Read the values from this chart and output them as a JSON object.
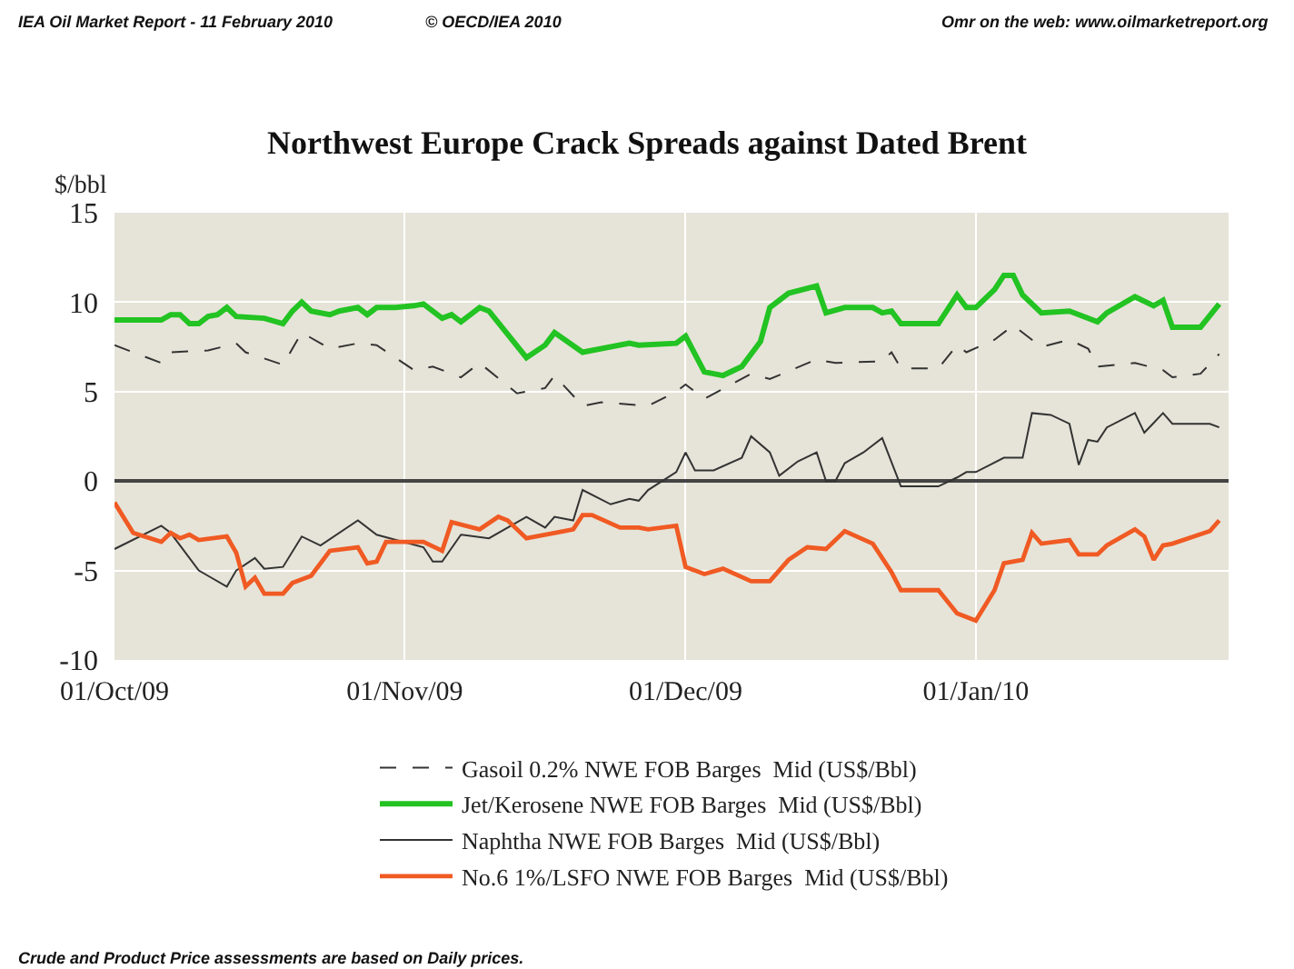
{
  "chart_data": {
    "type": "line",
    "title": "Northwest Europe Crack Spreads against Dated Brent",
    "ylabel": "$/bbl",
    "annotations": [
      "IEA Oil Market Report - 11 February 2010",
      "© OECD/IEA 2010",
      "Omr on the web: www.oilmarketreport.org",
      "Crude and Product Price assessments are based on Daily prices."
    ],
    "xlim": [
      "2009-10-01",
      "2010-01-28"
    ],
    "xticks": [
      {
        "value": "2009-10-01",
        "label": "01/Oct/09"
      },
      {
        "value": "2009-11-01",
        "label": "01/Nov/09"
      },
      {
        "value": "2009-12-01",
        "label": "01/Dec/09"
      },
      {
        "value": "2010-01-01",
        "label": "01/Jan/10"
      }
    ],
    "ylim": [
      -10,
      15
    ],
    "yticks": [
      -10,
      -5,
      0,
      5,
      10,
      15
    ],
    "grid": true,
    "legend": "bottom",
    "marker": "none",
    "series": [
      {
        "name": "Gasoil 0.2% NWE FOB Barges  Mid (US$/Bbl)",
        "color": "#333333",
        "line_style": "dashed",
        "x": [
          "2009-10-01",
          "2009-10-06",
          "2009-10-07",
          "2009-10-11",
          "2009-10-14",
          "2009-10-15",
          "2009-10-19",
          "2009-10-21",
          "2009-10-24",
          "2009-10-27",
          "2009-10-29",
          "2009-11-02",
          "2009-11-04",
          "2009-11-07",
          "2009-11-09",
          "2009-11-13",
          "2009-11-16",
          "2009-11-17",
          "2009-11-20",
          "2009-11-22",
          "2009-11-27",
          "2009-11-30",
          "2009-12-01",
          "2009-12-03",
          "2009-12-08",
          "2009-12-10",
          "2009-12-15",
          "2009-12-17",
          "2009-12-22",
          "2009-12-23",
          "2009-12-24",
          "2009-12-28",
          "2009-12-30",
          "2009-12-31",
          "2010-01-03",
          "2010-01-05",
          "2010-01-08",
          "2010-01-11",
          "2010-01-13",
          "2010-01-14",
          "2010-01-18",
          "2010-01-21",
          "2010-01-22",
          "2010-01-25",
          "2010-01-27"
        ],
        "values": [
          7.6,
          6.6,
          7.2,
          7.3,
          7.7,
          7.2,
          6.5,
          8.3,
          7.4,
          7.7,
          7.6,
          6.2,
          6.4,
          5.8,
          6.6,
          4.9,
          5.2,
          5.9,
          4.2,
          4.4,
          4.2,
          5.0,
          5.4,
          4.6,
          6.0,
          5.7,
          6.8,
          6.6,
          6.7,
          7.2,
          6.3,
          6.3,
          7.6,
          7.2,
          7.9,
          8.7,
          7.5,
          7.9,
          7.4,
          6.4,
          6.6,
          6.2,
          5.8,
          6.0,
          7.1
        ]
      },
      {
        "name": "Jet/Kerosene NWE FOB Barges  Mid (US$/Bbl)",
        "color": "#22c322",
        "line_style": "solid",
        "x": [
          "2009-10-01",
          "2009-10-06",
          "2009-10-07",
          "2009-10-08",
          "2009-10-09",
          "2009-10-10",
          "2009-10-11",
          "2009-10-12",
          "2009-10-13",
          "2009-10-14",
          "2009-10-17",
          "2009-10-19",
          "2009-10-20",
          "2009-10-21",
          "2009-10-22",
          "2009-10-24",
          "2009-10-25",
          "2009-10-27",
          "2009-10-28",
          "2009-10-29",
          "2009-10-31",
          "2009-11-02",
          "2009-11-03",
          "2009-11-05",
          "2009-11-06",
          "2009-11-07",
          "2009-11-09",
          "2009-11-10",
          "2009-11-14",
          "2009-11-16",
          "2009-11-17",
          "2009-11-20",
          "2009-11-25",
          "2009-11-26",
          "2009-11-30",
          "2009-12-01",
          "2009-12-03",
          "2009-12-05",
          "2009-12-07",
          "2009-12-09",
          "2009-12-10",
          "2009-12-12",
          "2009-12-15",
          "2009-12-16",
          "2009-12-18",
          "2009-12-21",
          "2009-12-22",
          "2009-12-23",
          "2009-12-24",
          "2009-12-28",
          "2009-12-30",
          "2009-12-31",
          "2010-01-01",
          "2010-01-03",
          "2010-01-04",
          "2010-01-05",
          "2010-01-06",
          "2010-01-08",
          "2010-01-11",
          "2010-01-14",
          "2010-01-15",
          "2010-01-18",
          "2010-01-20",
          "2010-01-21",
          "2010-01-22",
          "2010-01-25",
          "2010-01-27"
        ],
        "values": [
          9.0,
          9.0,
          9.3,
          9.3,
          8.8,
          8.8,
          9.2,
          9.3,
          9.7,
          9.2,
          9.1,
          8.8,
          9.5,
          10.0,
          9.5,
          9.3,
          9.5,
          9.7,
          9.3,
          9.7,
          9.7,
          9.8,
          9.9,
          9.1,
          9.3,
          8.9,
          9.7,
          9.5,
          6.9,
          7.6,
          8.3,
          7.2,
          7.7,
          7.6,
          7.7,
          8.1,
          6.1,
          5.9,
          6.4,
          7.8,
          9.7,
          10.5,
          10.9,
          9.4,
          9.7,
          9.7,
          9.4,
          9.5,
          8.8,
          8.8,
          10.4,
          9.7,
          9.7,
          10.7,
          11.5,
          11.5,
          10.4,
          9.4,
          9.5,
          8.9,
          9.4,
          10.3,
          9.8,
          10.1,
          8.6,
          8.6,
          9.9
        ]
      },
      {
        "name": "Naphtha NWE FOB Barges  Mid (US$/Bbl)",
        "color": "#333333",
        "line_style": "solid",
        "x": [
          "2009-10-01",
          "2009-10-06",
          "2009-10-07",
          "2009-10-10",
          "2009-10-11",
          "2009-10-13",
          "2009-10-14",
          "2009-10-16",
          "2009-10-17",
          "2009-10-19",
          "2009-10-21",
          "2009-10-23",
          "2009-10-27",
          "2009-10-29",
          "2009-11-03",
          "2009-11-04",
          "2009-11-05",
          "2009-11-07",
          "2009-11-10",
          "2009-11-14",
          "2009-11-16",
          "2009-11-17",
          "2009-11-19",
          "2009-11-20",
          "2009-11-23",
          "2009-11-25",
          "2009-11-26",
          "2009-11-27",
          "2009-11-30",
          "2009-12-01",
          "2009-12-02",
          "2009-12-04",
          "2009-12-07",
          "2009-12-08",
          "2009-12-10",
          "2009-12-11",
          "2009-12-13",
          "2009-12-15",
          "2009-12-16",
          "2009-12-17",
          "2009-12-18",
          "2009-12-20",
          "2009-12-22",
          "2009-12-24",
          "2009-12-28",
          "2009-12-30",
          "2009-12-31",
          "2010-01-01",
          "2010-01-04",
          "2010-01-06",
          "2010-01-07",
          "2010-01-09",
          "2010-01-11",
          "2010-01-12",
          "2010-01-13",
          "2010-01-14",
          "2010-01-15",
          "2010-01-18",
          "2010-01-19",
          "2010-01-21",
          "2010-01-22",
          "2010-01-26",
          "2010-01-27"
        ],
        "values": [
          -3.8,
          -2.5,
          -2.9,
          -5.0,
          -5.3,
          -5.9,
          -5.0,
          -4.3,
          -4.9,
          -4.8,
          -3.1,
          -3.6,
          -2.2,
          -3.0,
          -3.7,
          -4.5,
          -4.5,
          -3.0,
          -3.2,
          -2.0,
          -2.6,
          -2.0,
          -2.2,
          -0.5,
          -1.3,
          -1.0,
          -1.1,
          -0.5,
          0.5,
          1.6,
          0.6,
          0.6,
          1.3,
          2.5,
          1.6,
          0.3,
          1.1,
          1.6,
          0,
          0,
          1.0,
          1.6,
          2.4,
          -0.3,
          -0.3,
          0.2,
          0.5,
          0.5,
          1.3,
          1.3,
          3.8,
          3.7,
          3.2,
          0.9,
          2.3,
          2.2,
          3.0,
          3.8,
          2.7,
          3.8,
          3.2,
          3.2,
          3.0
        ]
      },
      {
        "name": "No.6 1%/LSFO NWE FOB Barges  Mid (US$/Bbl)",
        "color": "#f05a23",
        "line_style": "solid",
        "x": [
          "2009-10-01",
          "2009-10-03",
          "2009-10-06",
          "2009-10-07",
          "2009-10-08",
          "2009-10-09",
          "2009-10-10",
          "2009-10-13",
          "2009-10-14",
          "2009-10-15",
          "2009-10-16",
          "2009-10-17",
          "2009-10-19",
          "2009-10-20",
          "2009-10-22",
          "2009-10-24",
          "2009-10-27",
          "2009-10-28",
          "2009-10-29",
          "2009-10-30",
          "2009-11-03",
          "2009-11-05",
          "2009-11-06",
          "2009-11-09",
          "2009-11-11",
          "2009-11-12",
          "2009-11-14",
          "2009-11-18",
          "2009-11-19",
          "2009-11-20",
          "2009-11-21",
          "2009-11-24",
          "2009-11-26",
          "2009-11-27",
          "2009-11-30",
          "2009-12-01",
          "2009-12-03",
          "2009-12-05",
          "2009-12-08",
          "2009-12-10",
          "2009-12-12",
          "2009-12-14",
          "2009-12-16",
          "2009-12-18",
          "2009-12-21",
          "2009-12-23",
          "2009-12-24",
          "2009-12-28",
          "2009-12-30",
          "2010-01-01",
          "2010-01-03",
          "2010-01-04",
          "2010-01-06",
          "2010-01-07",
          "2010-01-08",
          "2010-01-11",
          "2010-01-12",
          "2010-01-14",
          "2010-01-15",
          "2010-01-18",
          "2010-01-19",
          "2010-01-20",
          "2010-01-21",
          "2010-01-22",
          "2010-01-26",
          "2010-01-27"
        ],
        "values": [
          -1.2,
          -2.9,
          -3.4,
          -2.9,
          -3.2,
          -3.0,
          -3.3,
          -3.1,
          -4.0,
          -5.9,
          -5.4,
          -6.3,
          -6.3,
          -5.7,
          -5.3,
          -3.9,
          -3.7,
          -4.6,
          -4.5,
          -3.4,
          -3.4,
          -3.9,
          -2.3,
          -2.7,
          -2.0,
          -2.2,
          -3.2,
          -2.8,
          -2.7,
          -1.9,
          -1.9,
          -2.6,
          -2.6,
          -2.7,
          -2.5,
          -4.8,
          -5.2,
          -4.9,
          -5.6,
          -5.6,
          -4.4,
          -3.7,
          -3.8,
          -2.8,
          -3.5,
          -5.1,
          -6.1,
          -6.1,
          -7.4,
          -7.8,
          -6.1,
          -4.6,
          -4.4,
          -2.9,
          -3.5,
          -3.3,
          -4.1,
          -4.1,
          -3.6,
          -2.7,
          -3.1,
          -4.4,
          -3.6,
          -3.5,
          -2.8,
          -2.2
        ]
      }
    ]
  }
}
